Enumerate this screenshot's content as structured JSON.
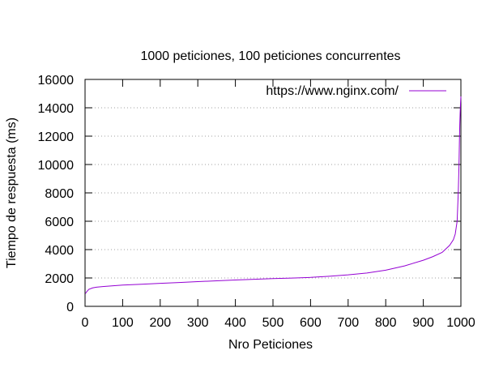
{
  "chart_data": {
    "type": "line",
    "title": "1000 peticiones, 100 peticiones concurrentes",
    "xlabel": "Nro Peticiones",
    "ylabel": "Tiempo de respuesta (ms)",
    "xlim": [
      0,
      1000
    ],
    "ylim": [
      0,
      16000
    ],
    "xticks": [
      0,
      100,
      200,
      300,
      400,
      500,
      600,
      700,
      800,
      900,
      1000
    ],
    "yticks": [
      0,
      2000,
      4000,
      6000,
      8000,
      10000,
      12000,
      14000,
      16000
    ],
    "grid": "horizontal dotted",
    "legend_position": "top-right",
    "series": [
      {
        "name": "https://www.nginx.com/",
        "color": "#9400d3",
        "x": [
          1,
          5,
          10,
          20,
          30,
          50,
          75,
          100,
          150,
          200,
          250,
          300,
          350,
          400,
          450,
          500,
          550,
          600,
          650,
          700,
          750,
          800,
          850,
          900,
          925,
          950,
          960,
          970,
          980,
          985,
          990,
          993,
          995,
          996,
          997,
          998,
          999,
          1000
        ],
        "y": [
          900,
          1050,
          1200,
          1300,
          1350,
          1400,
          1450,
          1500,
          1560,
          1620,
          1680,
          1740,
          1800,
          1860,
          1910,
          1960,
          1990,
          2040,
          2120,
          2220,
          2350,
          2550,
          2850,
          3250,
          3500,
          3800,
          4050,
          4300,
          4700,
          5100,
          6000,
          8000,
          10000,
          11500,
          12800,
          13600,
          14300,
          14800
        ]
      }
    ]
  }
}
